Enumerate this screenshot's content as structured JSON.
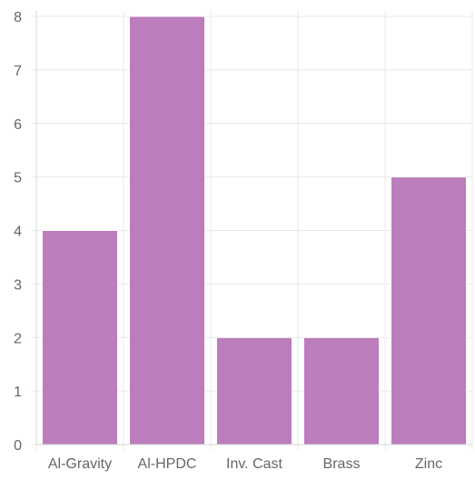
{
  "chart_data": {
    "type": "bar",
    "categories": [
      "Al-Gravity",
      "Al-HPDC",
      "Inv. Cast",
      "Brass",
      "Zinc"
    ],
    "values": [
      4,
      8,
      2,
      2,
      5
    ],
    "title": "",
    "xlabel": "",
    "ylabel": "",
    "ylim": [
      0,
      8
    ],
    "yticks": [
      "0",
      "1",
      "2",
      "3",
      "4",
      "5",
      "6",
      "7",
      "8"
    ],
    "grid": true,
    "legend": "none",
    "colors": {
      "bar_fill": "#bb7dbb",
      "bar_stroke": "#ffffff",
      "grid": "#e8e8e8",
      "axis": "#d9d9d9",
      "tick_label": "#666666"
    }
  }
}
